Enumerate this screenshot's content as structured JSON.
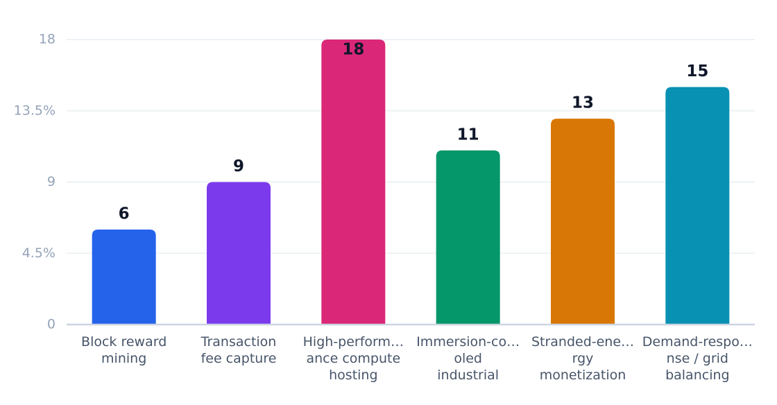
{
  "chart_data": {
    "type": "bar",
    "categories": [
      "Block reward\nmining",
      "Transaction\nfee capture",
      "High-perform…\nance compute\nhosting",
      "Immersion-co…\noled\nindustrial",
      "Stranded-ene…\nrgy\nmonetization",
      "Demand-respo…\nnse / grid\nbalancing"
    ],
    "values": [
      6,
      9,
      18,
      11,
      13,
      15
    ],
    "colors": [
      "#2563eb",
      "#7c3aed",
      "#db2777",
      "#059669",
      "#d97706",
      "#0891b2"
    ],
    "ylim": [
      0,
      18
    ],
    "yticks": [
      0,
      {
        "value": 4.5,
        "label": "4.5%"
      },
      9,
      {
        "value": 13.5,
        "label": "13.5%"
      },
      18
    ],
    "grid": true
  }
}
